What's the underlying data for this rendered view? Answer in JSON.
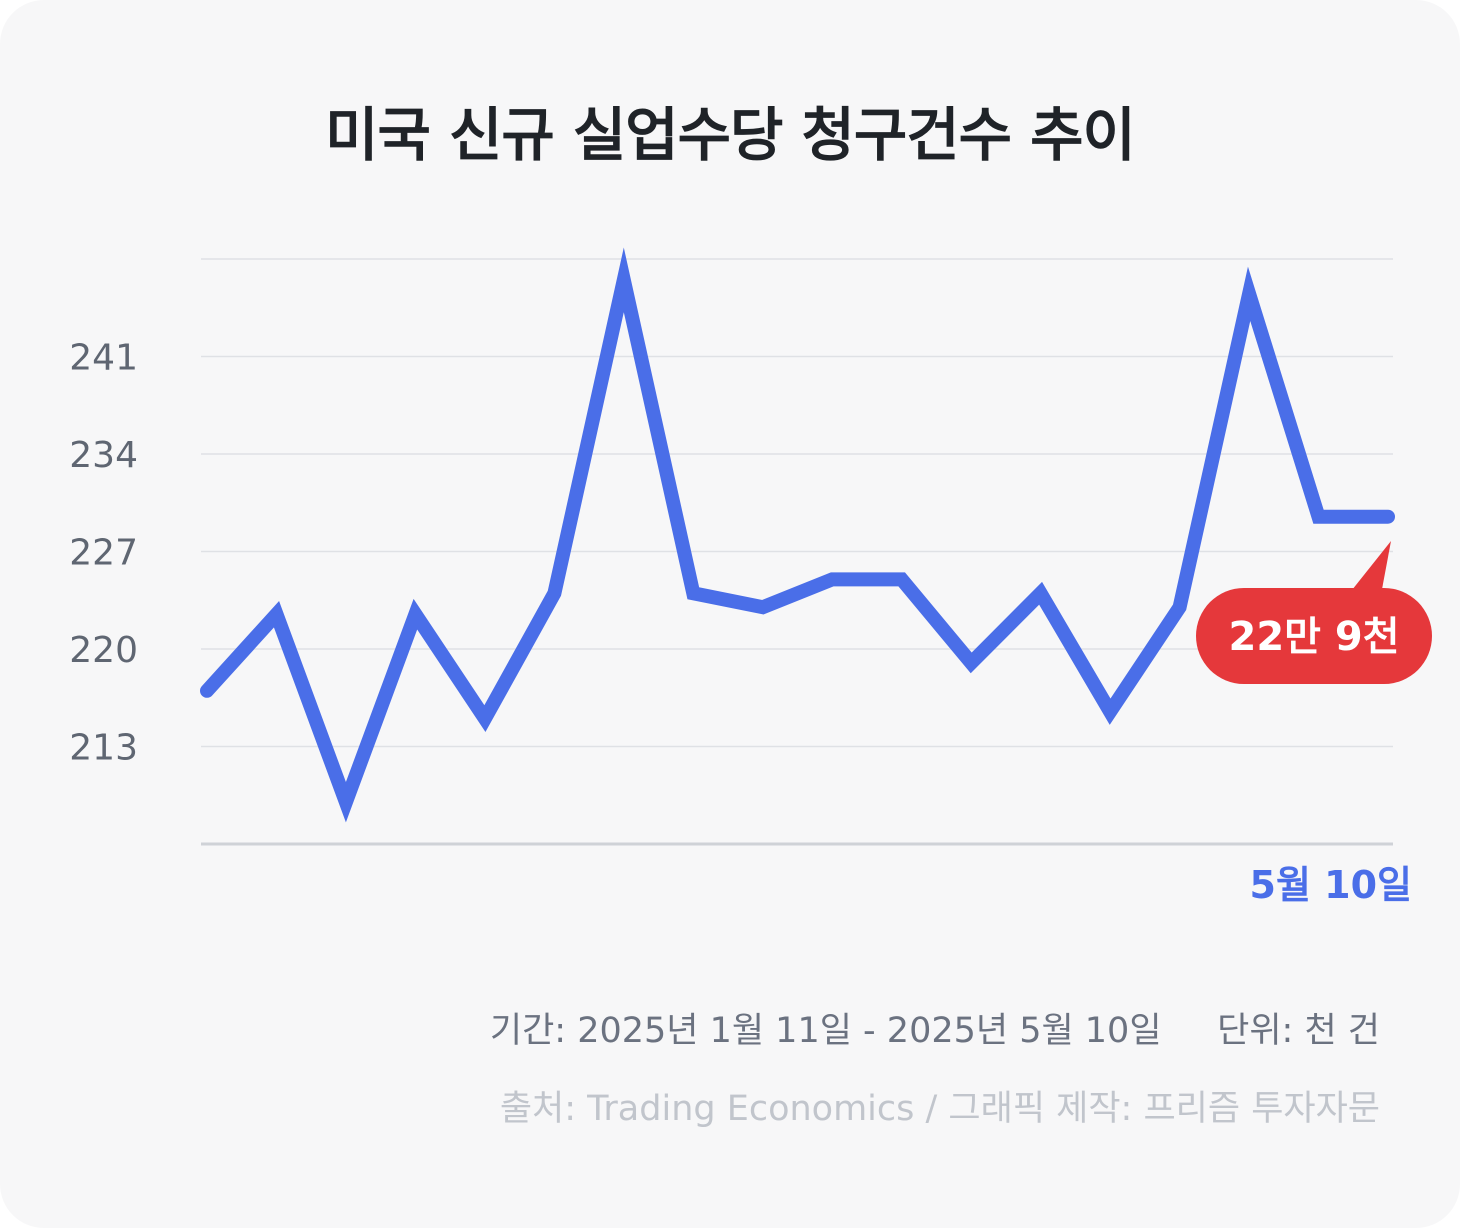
{
  "chart_data": {
    "type": "line",
    "title": "미국 신규 실업수당 청구건수 추이",
    "xlabel": "",
    "ylabel": "",
    "ylim": [
      206,
      248
    ],
    "y_ticks": [
      "213",
      "220",
      "227",
      "234",
      "241"
    ],
    "grid": true,
    "series": [
      {
        "color": "#4a6ee8",
        "values": [
          217,
          222.5,
          209,
          222.5,
          215,
          224,
          246.5,
          224,
          223,
          225,
          225,
          219,
          224,
          215.5,
          223,
          245.5,
          229.5,
          229.5
        ]
      }
    ],
    "end_label": "5월 10일",
    "annotation": "22만 9천",
    "annotation_color": "#e5383b"
  },
  "footer": {
    "period": "기간: 2025년 1월 11일 - 2025년 5월 10일     단위: 천 건",
    "source": "출처: Trading Economics / 그래픽 제작: 프리즘 투자자문"
  }
}
